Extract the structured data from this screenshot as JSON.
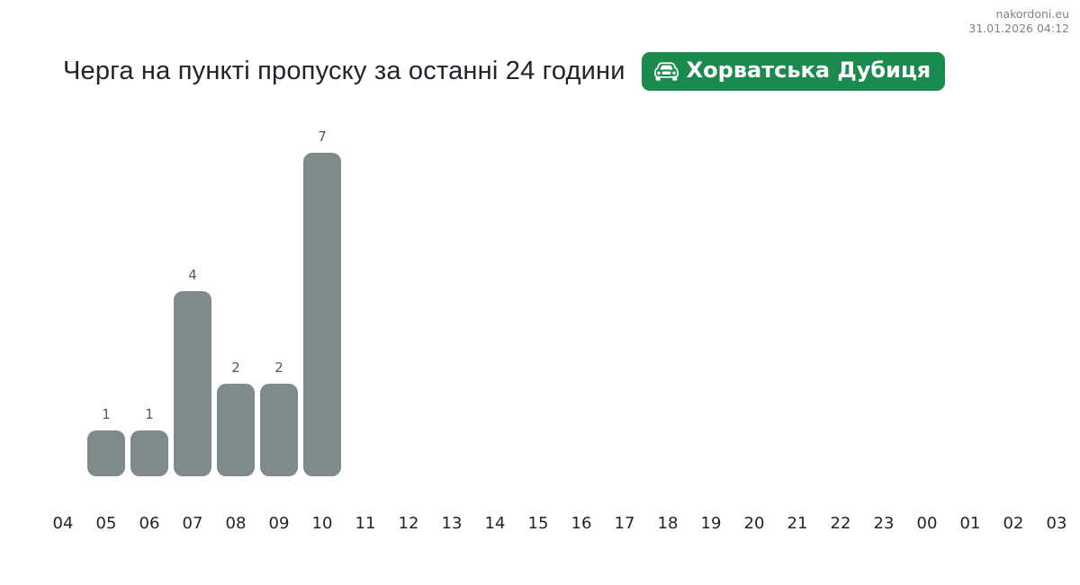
{
  "header": {
    "site": "nakordoni.eu",
    "timestamp": "31.01.2026 04:12"
  },
  "title": "Черга на пункті пропуску за останні 24 години",
  "badge": {
    "label": "Хорватська Дубиця",
    "icon": "car-front-icon",
    "background": "#1b8a4e",
    "text_color": "#ffffff"
  },
  "chart_data": {
    "type": "bar",
    "title": "Черга на пункті пропуску за останні 24 години",
    "categories": [
      "04",
      "05",
      "06",
      "07",
      "08",
      "09",
      "10",
      "11",
      "12",
      "13",
      "14",
      "15",
      "16",
      "17",
      "18",
      "19",
      "20",
      "21",
      "22",
      "23",
      "00",
      "01",
      "02",
      "03"
    ],
    "values": [
      0,
      1,
      1,
      4,
      2,
      2,
      7,
      0,
      0,
      0,
      0,
      0,
      0,
      0,
      0,
      0,
      0,
      0,
      0,
      0,
      0,
      0,
      0,
      0
    ],
    "xlabel": "",
    "ylabel": "",
    "ylim": [
      0,
      7
    ],
    "grid": false,
    "legend": false,
    "value_labels_shown": true,
    "bar_color": "#7e8a8c",
    "value_label_color": "#55595c",
    "axis_label_color": "#212529"
  }
}
